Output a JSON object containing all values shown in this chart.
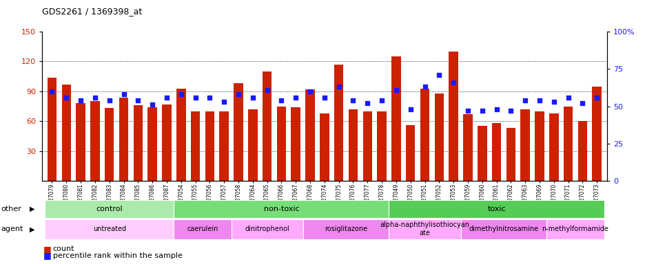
{
  "title": "GDS2261 / 1369398_at",
  "samples": [
    "GSM127079",
    "GSM127080",
    "GSM127081",
    "GSM127082",
    "GSM127083",
    "GSM127084",
    "GSM127085",
    "GSM127086",
    "GSM127087",
    "GSM127054",
    "GSM127055",
    "GSM127056",
    "GSM127057",
    "GSM127058",
    "GSM127064",
    "GSM127065",
    "GSM127066",
    "GSM127067",
    "GSM127068",
    "GSM127074",
    "GSM127075",
    "GSM127076",
    "GSM127077",
    "GSM127078",
    "GSM127049",
    "GSM127050",
    "GSM127051",
    "GSM127052",
    "GSM127053",
    "GSM127059",
    "GSM127060",
    "GSM127061",
    "GSM127062",
    "GSM127063",
    "GSM127069",
    "GSM127070",
    "GSM127071",
    "GSM127072",
    "GSM127073"
  ],
  "counts": [
    104,
    97,
    78,
    80,
    73,
    84,
    76,
    74,
    77,
    93,
    70,
    70,
    70,
    98,
    72,
    110,
    75,
    74,
    92,
    68,
    117,
    72,
    70,
    70,
    125,
    56,
    93,
    88,
    130,
    67,
    55,
    58,
    53,
    72,
    70,
    68,
    75,
    60,
    95
  ],
  "percentile_ranks": [
    60,
    56,
    54,
    56,
    54,
    58,
    54,
    51,
    56,
    58,
    56,
    56,
    53,
    58,
    56,
    61,
    54,
    56,
    60,
    56,
    63,
    54,
    52,
    54,
    61,
    48,
    63,
    71,
    66,
    47,
    47,
    48,
    47,
    54,
    54,
    53,
    56,
    52,
    56
  ],
  "ylim_left": [
    0,
    150
  ],
  "ylim_right": [
    0,
    100
  ],
  "yticks_left": [
    30,
    60,
    90,
    120,
    150
  ],
  "yticks_right": [
    0,
    25,
    50,
    75,
    100
  ],
  "bar_color": "#cc2200",
  "dot_color": "#1a1aff",
  "bg_color": "#ffffff",
  "groups_other": [
    {
      "label": "control",
      "start": 0,
      "end": 9,
      "color": "#aaeaaa"
    },
    {
      "label": "non-toxic",
      "start": 9,
      "end": 24,
      "color": "#77dd77"
    },
    {
      "label": "toxic",
      "start": 24,
      "end": 39,
      "color": "#55cc55"
    }
  ],
  "groups_agent": [
    {
      "label": "untreated",
      "start": 0,
      "end": 9,
      "color": "#ffccff"
    },
    {
      "label": "caerulein",
      "start": 9,
      "end": 13,
      "color": "#ee88ee"
    },
    {
      "label": "dinitrophenol",
      "start": 13,
      "end": 18,
      "color": "#ffaaff"
    },
    {
      "label": "rosiglitazone",
      "start": 18,
      "end": 24,
      "color": "#ee88ee"
    },
    {
      "label": "alpha-naphthylisothiocyan\nate",
      "start": 24,
      "end": 29,
      "color": "#ffaaff"
    },
    {
      "label": "dimethylnitrosamine",
      "start": 29,
      "end": 35,
      "color": "#ee88ee"
    },
    {
      "label": "n-methylformamide",
      "start": 35,
      "end": 39,
      "color": "#ffaaff"
    }
  ]
}
